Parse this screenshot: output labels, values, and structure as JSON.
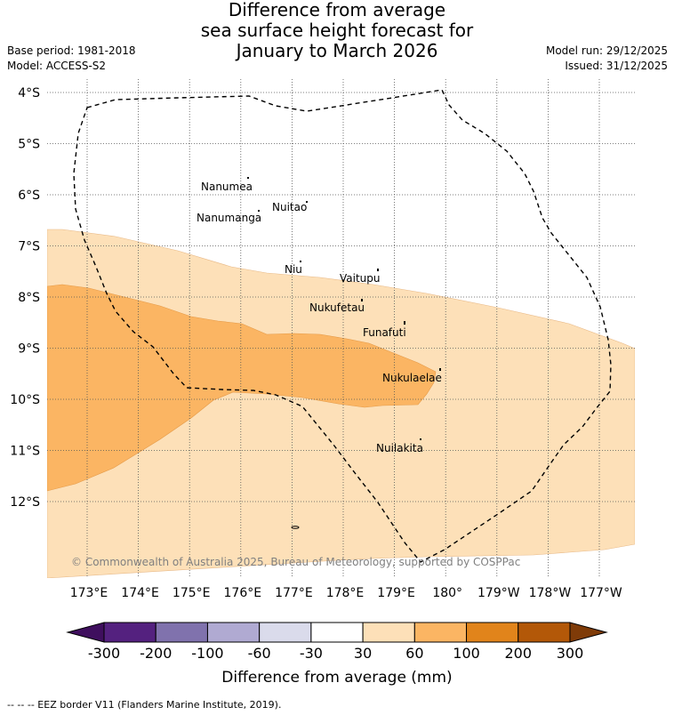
{
  "title": {
    "line1": "Difference from average",
    "line2": "sea surface height forecast for",
    "line3": "January to March 2026"
  },
  "meta": {
    "base_period": "Base period: 1981-2018",
    "model": "Model: ACCESS-S2",
    "model_run": "Model run: 29/12/2025",
    "issued": "Issued: 31/12/2025"
  },
  "map": {
    "lat_labels": [
      "4°S",
      "5°S",
      "6°S",
      "7°S",
      "8°S",
      "9°S",
      "10°S",
      "11°S",
      "12°S"
    ],
    "lon_labels": [
      "173°E",
      "174°E",
      "175°E",
      "176°E",
      "177°E",
      "178°E",
      "179°E",
      "180°",
      "179°W",
      "178°W",
      "177°W"
    ],
    "islands": [
      "Nanumea",
      "Nuitao",
      "Nanumanga",
      "Niu",
      "Vaitupu",
      "Nukufetau",
      "Funafuti",
      "Nukulaelae",
      "Nuilakita"
    ],
    "copyright": "© Commonwealth of Australia 2025, Bureau of Meteorology, supported by COSPPac",
    "fill_light": "#fde0b8",
    "fill_mid": "#fbb563"
  },
  "colorbar": {
    "ticks": [
      "-300",
      "-200",
      "-100",
      "-60",
      "-30",
      "30",
      "60",
      "100",
      "200",
      "300"
    ],
    "colors": [
      "#3f0f5e",
      "#54217f",
      "#8072ad",
      "#b0aad2",
      "#dadbeb",
      "#ffffff",
      "#fde0b8",
      "#fbb563",
      "#e1841b",
      "#b35808",
      "#7f3b08"
    ],
    "label": "Difference from average (mm)"
  },
  "footer": "--  --  -- EEZ border V11 (Flanders Marine Institute, 2019)."
}
